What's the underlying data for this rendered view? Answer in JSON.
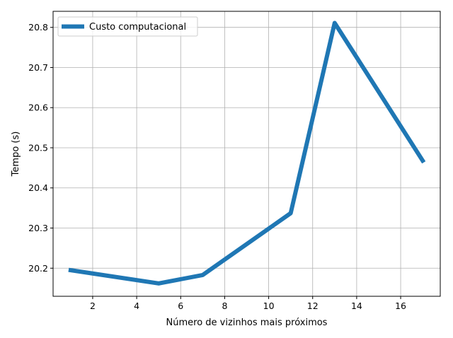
{
  "chart_data": {
    "type": "line",
    "title": "",
    "xlabel": "Número de vizinhos mais próximos",
    "ylabel": "Tempo (s)",
    "xlim": [
      0.2,
      17.8
    ],
    "ylim": [
      20.13,
      20.84
    ],
    "xticks": [
      2,
      4,
      6,
      8,
      10,
      12,
      14,
      16
    ],
    "yticks": [
      20.2,
      20.3,
      20.4,
      20.5,
      20.6,
      20.7,
      20.8
    ],
    "grid": true,
    "legend_position": "top-left",
    "series": [
      {
        "name": "Custo computacional",
        "color": "#1f77b4",
        "x": [
          1,
          5,
          7,
          11,
          13,
          17
        ],
        "y": [
          20.195,
          20.162,
          20.183,
          20.337,
          20.811,
          20.468
        ]
      }
    ]
  }
}
